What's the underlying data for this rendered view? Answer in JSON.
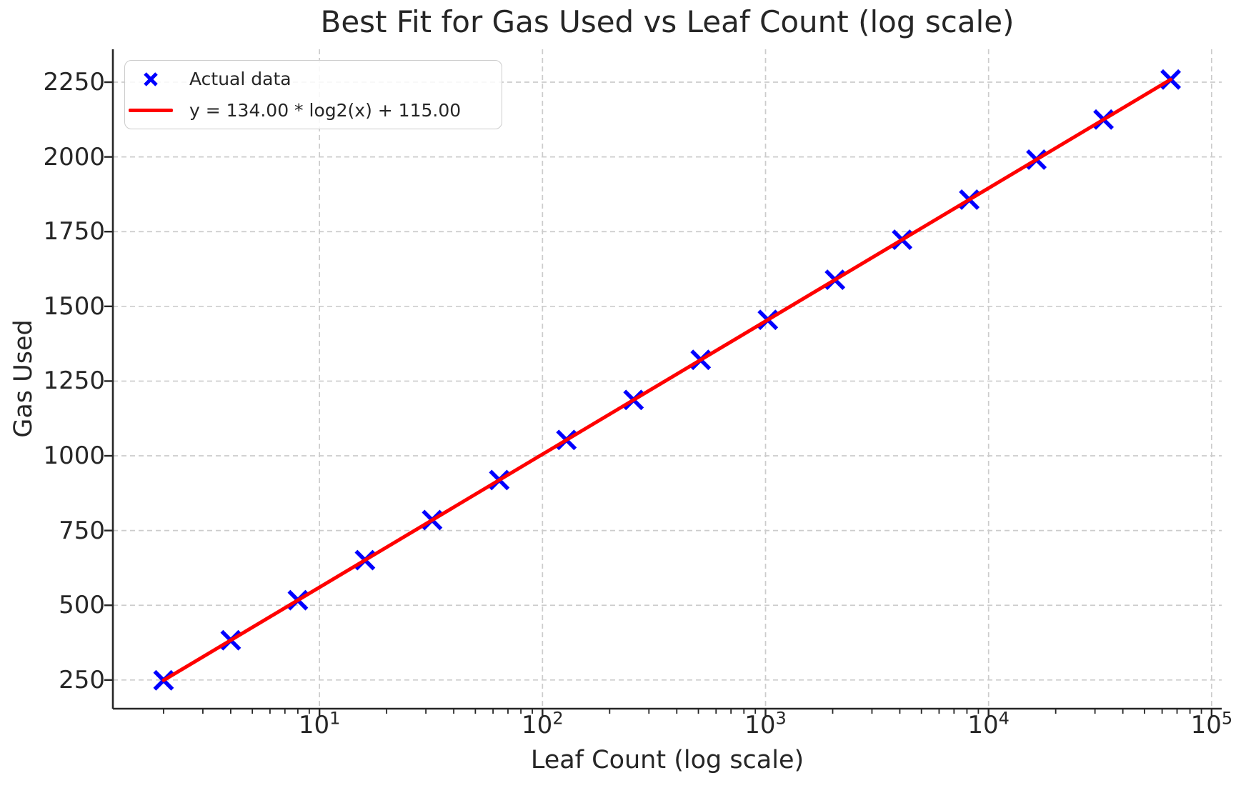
{
  "chart_data": {
    "type": "scatter",
    "title": "Best Fit for Gas Used vs Leaf Count (log scale)",
    "xlabel": "Leaf Count (log scale)",
    "ylabel": "Gas Used",
    "x_scale": "log",
    "y_scale": "linear",
    "xlim": [
      1.185,
      111000
    ],
    "ylim": [
      154,
      2360
    ],
    "grid": true,
    "legend_position": "upper left",
    "x_ticks": [
      {
        "value": 10,
        "base": "10",
        "exp": "1"
      },
      {
        "value": 100,
        "base": "10",
        "exp": "2"
      },
      {
        "value": 1000,
        "base": "10",
        "exp": "3"
      },
      {
        "value": 10000,
        "base": "10",
        "exp": "4"
      },
      {
        "value": 100000,
        "base": "10",
        "exp": "5"
      }
    ],
    "y_ticks": [
      250,
      500,
      750,
      1000,
      1250,
      1500,
      1750,
      2000,
      2250
    ],
    "series": [
      {
        "name": "Actual data",
        "type": "scatter",
        "marker": "x",
        "color": "#0000ff",
        "x": [
          2,
          4,
          8,
          16,
          32,
          64,
          128,
          256,
          512,
          1024,
          2048,
          4096,
          8192,
          16384,
          32768,
          65536
        ],
        "y": [
          249,
          383,
          517,
          651,
          785,
          919,
          1053,
          1187,
          1321,
          1455,
          1589,
          1723,
          1857,
          1991,
          2125,
          2259
        ]
      },
      {
        "name": "y = 134.00 * log2(x) + 115.00",
        "type": "line",
        "color": "#ff0000",
        "equation": {
          "slope": 134.0,
          "log_base": 2,
          "intercept": 115.0
        },
        "x_range": [
          2,
          65536
        ]
      }
    ],
    "colors": {
      "grid": "#cccccc",
      "spine": "#262626",
      "tick": "#262626",
      "text": "#262626",
      "legend_border": "#cccccc"
    }
  }
}
